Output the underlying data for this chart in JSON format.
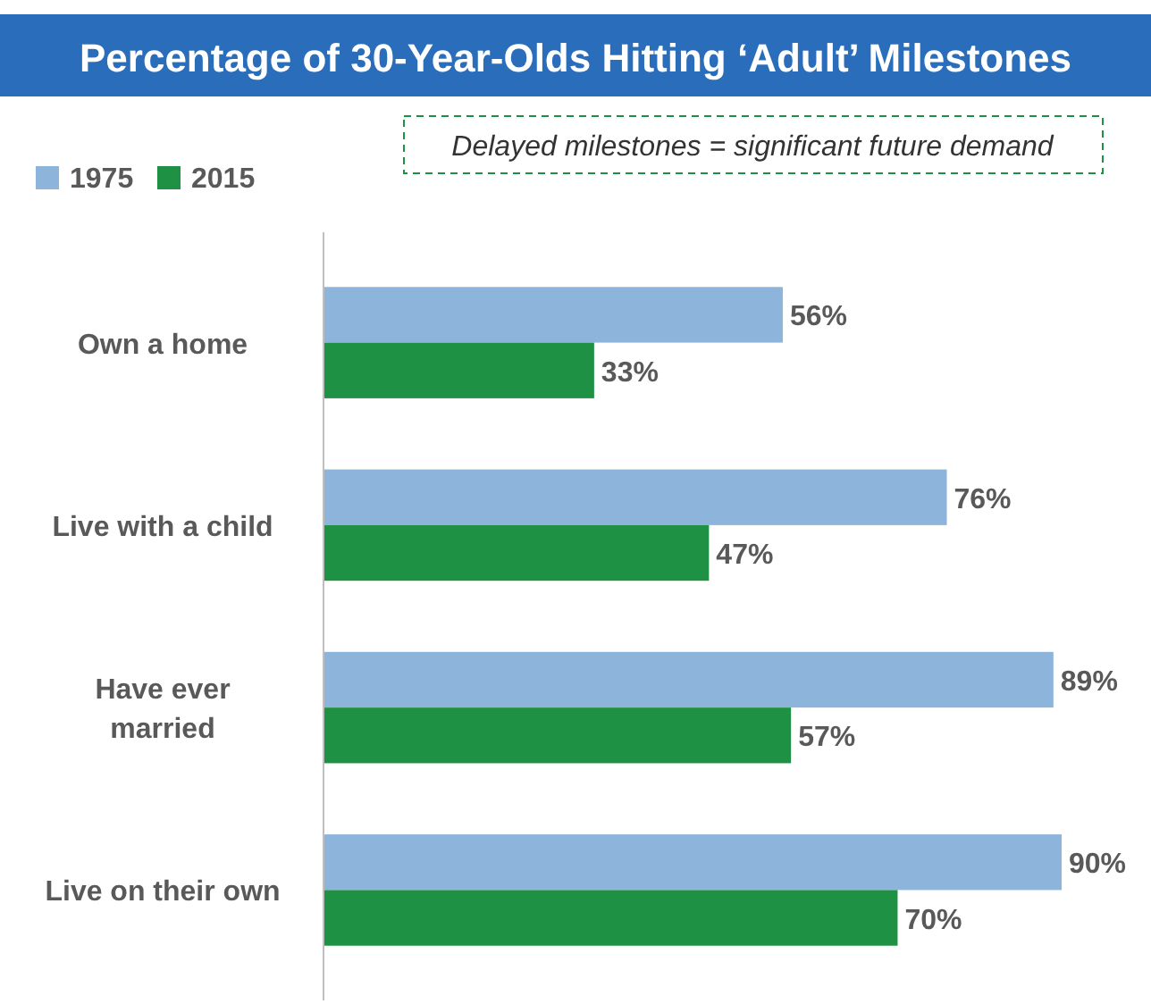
{
  "chart_data": {
    "type": "bar",
    "orientation": "horizontal",
    "title": "Percentage of 30-Year-Olds Hitting ‘Adult’ Milestones",
    "annotations": [
      "Delayed milestones = significant future demand"
    ],
    "categories": [
      "Own a home",
      "Live with a child",
      "Have ever\nmarried",
      "Live on their own"
    ],
    "series": [
      {
        "name": "1975",
        "color": "#8db4da",
        "values": [
          56,
          76,
          89,
          90
        ],
        "value_labels": [
          "56%",
          "76%",
          "89%",
          "90%"
        ]
      },
      {
        "name": "2015",
        "color": "#1f9145",
        "values": [
          33,
          47,
          57,
          70
        ],
        "value_labels": [
          "33%",
          "47%",
          "57%",
          "70%"
        ]
      }
    ],
    "tick_labels": "y",
    "legend": "top left"
  }
}
